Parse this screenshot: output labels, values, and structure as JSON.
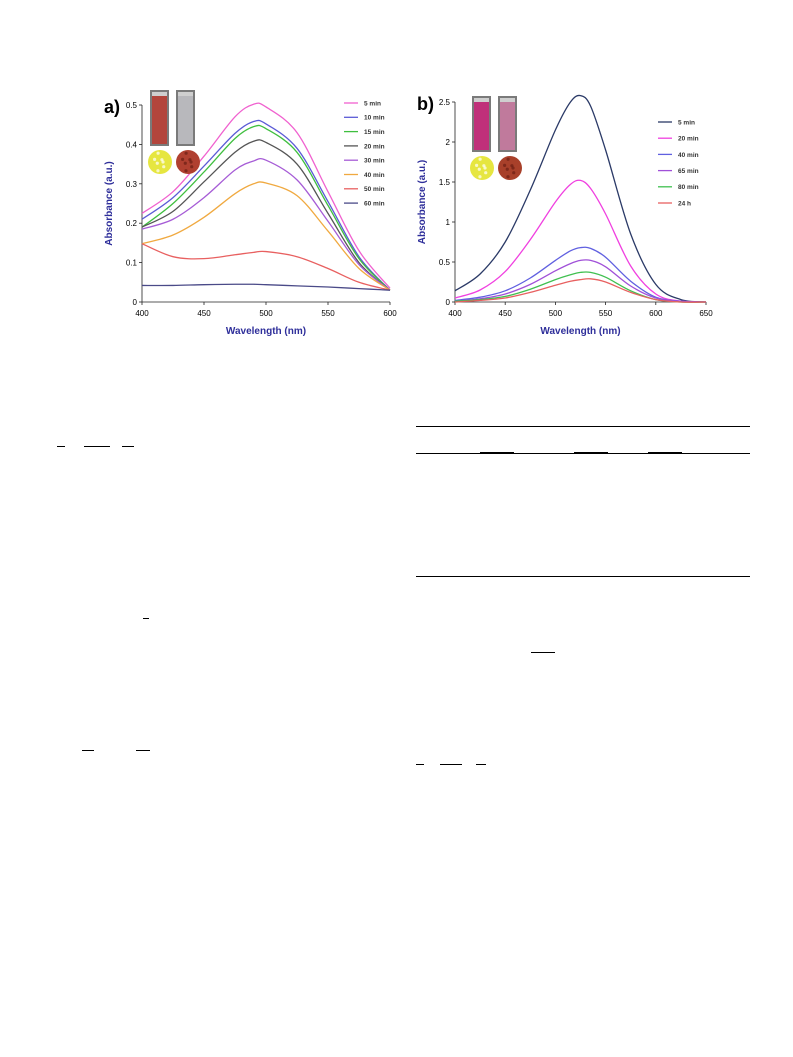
{
  "chart_data": [
    {
      "panel_label": "a)",
      "type": "line",
      "xlabel": "Wavelength (nm)",
      "ylabel": "Absorbance (a.u.)",
      "xlim": [
        400,
        600
      ],
      "ylim": [
        0,
        0.5
      ],
      "xticks": [
        400,
        450,
        500,
        550,
        600
      ],
      "yticks": [
        0,
        0.1,
        0.2,
        0.3,
        0.4,
        0.5
      ],
      "grid": false,
      "legend_position": "top-right",
      "x": [
        400,
        425,
        450,
        475,
        490,
        500,
        525,
        550,
        575,
        600
      ],
      "series": [
        {
          "name": "5 min",
          "color": "#f061cf",
          "values": [
            0.225,
            0.28,
            0.37,
            0.47,
            0.502,
            0.495,
            0.43,
            0.28,
            0.13,
            0.035
          ]
        },
        {
          "name": "10 min",
          "color": "#5b5bd6",
          "values": [
            0.21,
            0.265,
            0.345,
            0.428,
            0.458,
            0.452,
            0.39,
            0.255,
            0.115,
            0.03
          ]
        },
        {
          "name": "15 min",
          "color": "#3fbf3f",
          "values": [
            0.19,
            0.25,
            0.33,
            0.415,
            0.445,
            0.44,
            0.38,
            0.245,
            0.11,
            0.03
          ]
        },
        {
          "name": "20 min",
          "color": "#555555",
          "values": [
            0.19,
            0.23,
            0.305,
            0.38,
            0.408,
            0.405,
            0.35,
            0.225,
            0.1,
            0.03
          ]
        },
        {
          "name": "30 min",
          "color": "#a65cd6",
          "values": [
            0.185,
            0.21,
            0.265,
            0.335,
            0.358,
            0.36,
            0.31,
            0.205,
            0.095,
            0.03
          ]
        },
        {
          "name": "40 min",
          "color": "#f0a940",
          "values": [
            0.148,
            0.17,
            0.215,
            0.275,
            0.3,
            0.302,
            0.27,
            0.18,
            0.085,
            0.03
          ]
        },
        {
          "name": "50 min",
          "color": "#e86060",
          "values": [
            0.148,
            0.115,
            0.11,
            0.12,
            0.126,
            0.128,
            0.115,
            0.085,
            0.05,
            0.03
          ]
        },
        {
          "name": "60 min",
          "color": "#4a4a88",
          "values": [
            0.042,
            0.042,
            0.044,
            0.045,
            0.045,
            0.044,
            0.041,
            0.038,
            0.034,
            0.03
          ]
        }
      ]
    },
    {
      "panel_label": "b)",
      "type": "line",
      "xlabel": "Wavelength (nm)",
      "ylabel": "Absorbance (a.u.)",
      "xlim": [
        400,
        650
      ],
      "ylim": [
        0,
        2.5
      ],
      "xticks": [
        400,
        450,
        500,
        550,
        600,
        650
      ],
      "yticks": [
        0,
        0.5,
        1,
        1.5,
        2,
        2.5
      ],
      "grid": false,
      "legend_position": "top-right",
      "x": [
        400,
        425,
        450,
        475,
        500,
        515,
        525,
        535,
        550,
        575,
        600,
        625,
        650
      ],
      "series": [
        {
          "name": "5 min",
          "color": "#2b3a67",
          "values": [
            0.14,
            0.35,
            0.75,
            1.4,
            2.15,
            2.5,
            2.58,
            2.45,
            1.9,
            0.85,
            0.22,
            0.03,
            0.0
          ]
        },
        {
          "name": "20 min",
          "color": "#f040e0",
          "values": [
            0.05,
            0.15,
            0.38,
            0.78,
            1.25,
            1.47,
            1.52,
            1.42,
            1.1,
            0.45,
            0.1,
            0.01,
            0.0
          ]
        },
        {
          "name": "40 min",
          "color": "#6060e0",
          "values": [
            0.02,
            0.06,
            0.14,
            0.3,
            0.52,
            0.64,
            0.68,
            0.67,
            0.56,
            0.26,
            0.06,
            0.01,
            0.0
          ]
        },
        {
          "name": "65 min",
          "color": "#a050d8",
          "values": [
            0.01,
            0.04,
            0.1,
            0.22,
            0.39,
            0.48,
            0.52,
            0.52,
            0.44,
            0.2,
            0.05,
            0.01,
            0.0
          ]
        },
        {
          "name": "80 min",
          "color": "#40c050",
          "values": [
            0.01,
            0.03,
            0.07,
            0.16,
            0.28,
            0.34,
            0.37,
            0.37,
            0.31,
            0.14,
            0.03,
            0.0,
            0.0
          ]
        },
        {
          "name": "24 h",
          "color": "#e86060",
          "values": [
            0.0,
            0.02,
            0.05,
            0.12,
            0.21,
            0.26,
            0.28,
            0.29,
            0.25,
            0.12,
            0.03,
            0.0,
            0.0
          ]
        }
      ]
    }
  ],
  "insets": {
    "a": {
      "vial_colors": [
        "#b3453c",
        "#b8b8bc"
      ],
      "powder_colors": [
        "#e6e640",
        "#b04030"
      ]
    },
    "b": {
      "vial_colors": [
        "#c0307a",
        "#c07a9c"
      ],
      "powder_colors": [
        "#e6e640",
        "#a8402a"
      ]
    }
  }
}
